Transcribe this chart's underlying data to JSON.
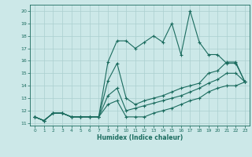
{
  "xlabel": "Humidex (Indice chaleur)",
  "ylabel": "",
  "bg_color": "#cce8e8",
  "line_color": "#1a6b5e",
  "grid_color": "#aacfcf",
  "xlim": [
    -0.5,
    23.5
  ],
  "ylim": [
    10.8,
    20.5
  ],
  "yticks": [
    11,
    12,
    13,
    14,
    15,
    16,
    17,
    18,
    19,
    20
  ],
  "xticks": [
    0,
    1,
    2,
    3,
    4,
    5,
    6,
    7,
    8,
    9,
    10,
    11,
    12,
    13,
    14,
    15,
    16,
    17,
    18,
    19,
    20,
    21,
    22,
    23
  ],
  "series": [
    [
      11.5,
      11.2,
      11.8,
      11.8,
      11.5,
      11.5,
      11.5,
      11.5,
      15.9,
      17.6,
      17.6,
      17.0,
      17.5,
      18.0,
      17.5,
      19.0,
      16.5,
      20.0,
      17.5,
      16.5,
      16.5,
      15.8,
      15.8,
      14.3
    ],
    [
      11.5,
      11.2,
      11.8,
      11.8,
      11.5,
      11.5,
      11.5,
      11.5,
      14.4,
      15.8,
      13.0,
      12.5,
      12.8,
      13.0,
      13.2,
      13.5,
      13.8,
      14.0,
      14.2,
      15.0,
      15.2,
      15.9,
      15.9,
      14.3
    ],
    [
      11.5,
      11.2,
      11.8,
      11.8,
      11.5,
      11.5,
      11.5,
      11.5,
      13.2,
      13.8,
      12.0,
      12.2,
      12.4,
      12.6,
      12.8,
      13.0,
      13.2,
      13.5,
      13.8,
      14.2,
      14.5,
      15.0,
      15.0,
      14.3
    ],
    [
      11.5,
      11.2,
      11.8,
      11.8,
      11.5,
      11.5,
      11.5,
      11.5,
      12.5,
      12.8,
      11.5,
      11.5,
      11.5,
      11.8,
      12.0,
      12.2,
      12.5,
      12.8,
      13.0,
      13.5,
      13.8,
      14.0,
      14.0,
      14.3
    ]
  ]
}
